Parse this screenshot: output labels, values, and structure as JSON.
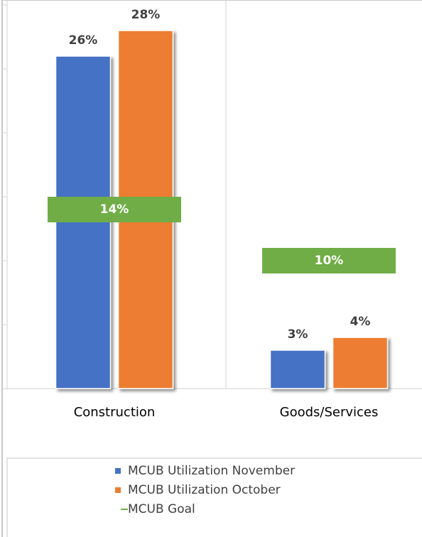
{
  "chart_data": {
    "type": "bar",
    "categories": [
      "Construction",
      "Goods/Services"
    ],
    "series": [
      {
        "name": "MCUB Utilization November",
        "color": "#4472c4",
        "values": [
          26,
          3
        ],
        "value_labels": [
          "26%",
          "3%"
        ]
      },
      {
        "name": "MCUB Utilization October",
        "color": "#ed7d31",
        "values": [
          28,
          4
        ],
        "value_labels": [
          "28%",
          "4%"
        ]
      },
      {
        "name": "MCUB Goal",
        "color": "#70ad47",
        "type": "marker",
        "values": [
          14,
          10
        ],
        "value_labels": [
          "14%",
          "10%"
        ]
      }
    ],
    "ylim": [
      0,
      30
    ],
    "yticks": [
      0,
      5,
      10,
      15,
      20,
      25,
      30
    ],
    "legend": "bottom"
  }
}
